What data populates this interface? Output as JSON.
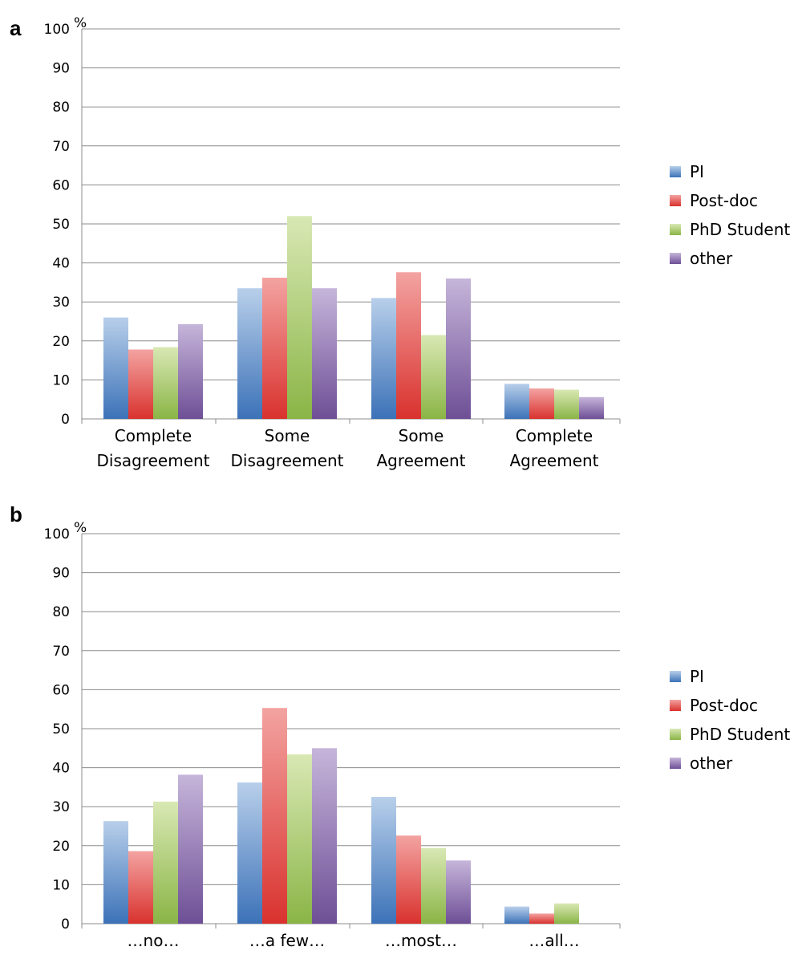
{
  "chart_data": [
    {
      "type": "bar",
      "panel": "a",
      "unit": "%",
      "ylim": [
        0,
        100
      ],
      "yticks": [
        0,
        10,
        20,
        30,
        40,
        50,
        60,
        70,
        80,
        90,
        100
      ],
      "grid": true,
      "legend_position": "right",
      "categories": [
        [
          "Complete",
          "Disagreement"
        ],
        [
          "Some",
          "Disagreement"
        ],
        [
          "Some",
          "Agreement"
        ],
        [
          "Complete",
          "Agreement"
        ]
      ],
      "series": [
        {
          "name": "PI",
          "values": [
            26,
            33.5,
            31,
            9
          ]
        },
        {
          "name": "Post-doc",
          "values": [
            17.8,
            36.2,
            37.6,
            7.8
          ]
        },
        {
          "name": "PhD Student",
          "values": [
            18.4,
            52,
            21.5,
            7.5
          ]
        },
        {
          "name": "other",
          "values": [
            24.3,
            33.5,
            36,
            5.6
          ]
        }
      ]
    },
    {
      "type": "bar",
      "panel": "b",
      "unit": "%",
      "ylim": [
        0,
        100
      ],
      "yticks": [
        0,
        10,
        20,
        30,
        40,
        50,
        60,
        70,
        80,
        90,
        100
      ],
      "grid": true,
      "legend_position": "right",
      "categories": [
        [
          "…no…"
        ],
        [
          "…a few…"
        ],
        [
          "…most…"
        ],
        [
          "…all…"
        ]
      ],
      "series": [
        {
          "name": "PI",
          "values": [
            26.3,
            36.2,
            32.5,
            4.4
          ]
        },
        {
          "name": "Post-doc",
          "values": [
            18.6,
            55.3,
            22.6,
            2.6
          ]
        },
        {
          "name": "PhD Student",
          "values": [
            31.3,
            43.4,
            19.4,
            5.2
          ]
        },
        {
          "name": "other",
          "values": [
            38.2,
            45,
            16.2,
            0
          ]
        }
      ]
    }
  ],
  "colors": {
    "PI": "#4f81bd",
    "Post-doc": "#e0403d",
    "PhD Student": "#9bbb59",
    "other": "#8064a2"
  }
}
